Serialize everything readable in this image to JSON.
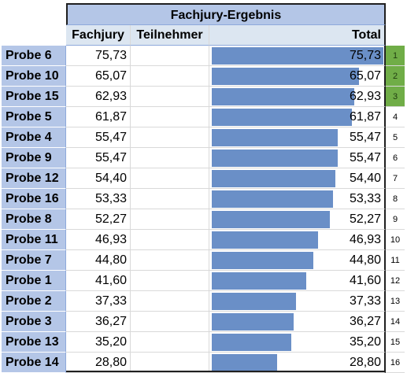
{
  "header": {
    "title": "Fachjury-Ergebnis",
    "col_fachjury": "Fachjury",
    "col_teilnehmer": "Teilnehmer",
    "col_total": "Total"
  },
  "colors": {
    "bar": "#6a8fc7",
    "header": "#b4c6e7",
    "rank_top": "#70ad47"
  },
  "bar_max": 75.73,
  "rows": [
    {
      "name": "Probe 6",
      "fachjury": "75,73",
      "teilnehmer": "",
      "total": "75,73",
      "value": 75.73,
      "rank": "1"
    },
    {
      "name": "Probe 10",
      "fachjury": "65,07",
      "teilnehmer": "",
      "total": "65,07",
      "value": 65.07,
      "rank": "2"
    },
    {
      "name": "Probe 15",
      "fachjury": "62,93",
      "teilnehmer": "",
      "total": "62,93",
      "value": 62.93,
      "rank": "3"
    },
    {
      "name": "Probe 5",
      "fachjury": "61,87",
      "teilnehmer": "",
      "total": "61,87",
      "value": 61.87,
      "rank": "4"
    },
    {
      "name": "Probe 4",
      "fachjury": "55,47",
      "teilnehmer": "",
      "total": "55,47",
      "value": 55.47,
      "rank": "5"
    },
    {
      "name": "Probe 9",
      "fachjury": "55,47",
      "teilnehmer": "",
      "total": "55,47",
      "value": 55.47,
      "rank": "6"
    },
    {
      "name": "Probe 12",
      "fachjury": "54,40",
      "teilnehmer": "",
      "total": "54,40",
      "value": 54.4,
      "rank": "7"
    },
    {
      "name": "Probe 16",
      "fachjury": "53,33",
      "teilnehmer": "",
      "total": "53,33",
      "value": 53.33,
      "rank": "8"
    },
    {
      "name": "Probe 8",
      "fachjury": "52,27",
      "teilnehmer": "",
      "total": "52,27",
      "value": 52.27,
      "rank": "9"
    },
    {
      "name": "Probe 11",
      "fachjury": "46,93",
      "teilnehmer": "",
      "total": "46,93",
      "value": 46.93,
      "rank": "10"
    },
    {
      "name": "Probe 7",
      "fachjury": "44,80",
      "teilnehmer": "",
      "total": "44,80",
      "value": 44.8,
      "rank": "11"
    },
    {
      "name": "Probe 1",
      "fachjury": "41,60",
      "teilnehmer": "",
      "total": "41,60",
      "value": 41.6,
      "rank": "12"
    },
    {
      "name": "Probe 2",
      "fachjury": "37,33",
      "teilnehmer": "",
      "total": "37,33",
      "value": 37.33,
      "rank": "13"
    },
    {
      "name": "Probe 3",
      "fachjury": "36,27",
      "teilnehmer": "",
      "total": "36,27",
      "value": 36.27,
      "rank": "14"
    },
    {
      "name": "Probe 13",
      "fachjury": "35,20",
      "teilnehmer": "",
      "total": "35,20",
      "value": 35.2,
      "rank": "15"
    },
    {
      "name": "Probe 14",
      "fachjury": "28,80",
      "teilnehmer": "",
      "total": "28,80",
      "value": 28.8,
      "rank": "16"
    }
  ]
}
